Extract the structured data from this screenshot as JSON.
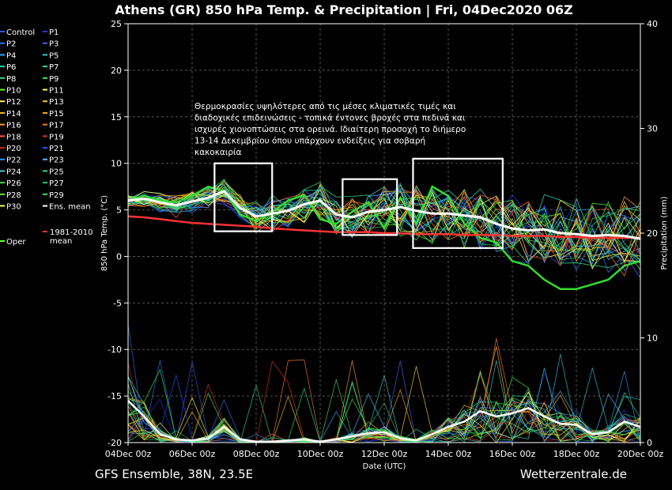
{
  "chart_data": {
    "type": "line",
    "title": "Athens  (GR)  850 hPa Temp. & Precipitation | Fri, 04Dec2020 06Z",
    "ylabel_left": "850 hPa Temp. (°C)",
    "ylabel_right": "Precipitation (mm)",
    "xlabel": "Date (UTC)",
    "footer_left": "GFS Ensemble, 38N, 23.5E",
    "footer_right": "Wetterzentrale.de",
    "ylim_left": [
      -20,
      25
    ],
    "ylim_right": [
      0,
      40
    ],
    "yticks_left": [
      "-20",
      "-15",
      "-10",
      "-5",
      "0",
      "5",
      "10",
      "15",
      "20",
      "25"
    ],
    "yticks_right": [
      "0",
      "10",
      "20",
      "30",
      "40"
    ],
    "x_tick_labels": [
      "04Dec 00z",
      "06Dec 00z",
      "08Dec 00z",
      "10Dec 00z",
      "12Dec 00z",
      "14Dec 00z",
      "16Dec 00z",
      "18Dec 00z",
      "20Dec 00z"
    ],
    "grid": true,
    "legend": [
      {
        "name": "Control",
        "color": "#3355ff"
      },
      {
        "name": "P1",
        "color": "#2233dd"
      },
      {
        "name": "P2",
        "color": "#2277ff"
      },
      {
        "name": "P3",
        "color": "#4466ee"
      },
      {
        "name": "P4",
        "color": "#33aaff"
      },
      {
        "name": "P5",
        "color": "#22ccdd"
      },
      {
        "name": "P6",
        "color": "#22ddbb"
      },
      {
        "name": "P7",
        "color": "#22dd99"
      },
      {
        "name": "P8",
        "color": "#33dd77"
      },
      {
        "name": "P9",
        "color": "#44ee44"
      },
      {
        "name": "P10",
        "color": "#66ff22"
      },
      {
        "name": "P11",
        "color": "#ffff44"
      },
      {
        "name": "P12",
        "color": "#ffee66"
      },
      {
        "name": "P13",
        "color": "#ffcc33"
      },
      {
        "name": "P14",
        "color": "#ffbb22"
      },
      {
        "name": "P15",
        "color": "#ffaa00"
      },
      {
        "name": "P16",
        "color": "#ff9933"
      },
      {
        "name": "P17",
        "color": "#ff7722"
      },
      {
        "name": "P18",
        "color": "#ff5533"
      },
      {
        "name": "P19",
        "color": "#dd3322"
      },
      {
        "name": "P20",
        "color": "#cc2211"
      },
      {
        "name": "P21",
        "color": "#2255ff"
      },
      {
        "name": "P22",
        "color": "#3399ff"
      },
      {
        "name": "P23",
        "color": "#55bbff"
      },
      {
        "name": "P24",
        "color": "#44cccc"
      },
      {
        "name": "P25",
        "color": "#22dd88"
      },
      {
        "name": "P26",
        "color": "#44dd55"
      },
      {
        "name": "P27",
        "color": "#22cc66"
      },
      {
        "name": "P28",
        "color": "#55ee33"
      },
      {
        "name": "P29",
        "color": "#33ee55"
      },
      {
        "name": "P30",
        "color": "#ffff55"
      },
      {
        "name": "Ens. mean",
        "color": "#ffffff"
      },
      {
        "name": "Oper",
        "color": "#66ff33"
      },
      {
        "name": "1981-2010 mean",
        "color": "#ff3333"
      }
    ],
    "annotation": [
      "Θερμοκρασίες υψηλότερες από τις μέσες κλιματικές τιμές και",
      "διαδοχικές επιδεινώσεις - τοπικά έντονες βροχές στα πεδινά και",
      "ισχυρές χιονοπτώσεις στα ορεινά. Ιδιαίτερη προσοχή το διήμερο",
      "13-14 Δεκεμβρίου όπου υπάρχουν ενδείξεις για σοβαρή",
      "κακοκαιρία"
    ],
    "highlight_boxes_days": [
      {
        "x0": 2.7,
        "x1": 4.5,
        "y0": 2.7,
        "y1": 10.0
      },
      {
        "x0": 6.7,
        "x1": 8.4,
        "y0": 2.3,
        "y1": 8.3
      },
      {
        "x0": 8.9,
        "x1": 11.7,
        "y0": 0.9,
        "y1": 10.5
      }
    ],
    "x_days": [
      0,
      0.5,
      1,
      1.5,
      2,
      2.5,
      3,
      3.5,
      4,
      4.5,
      5,
      5.5,
      6,
      6.5,
      7,
      7.5,
      8,
      8.5,
      9,
      9.5,
      10,
      10.5,
      11,
      11.5,
      12,
      12.5,
      13,
      13.5,
      14,
      14.5,
      15,
      15.5,
      16
    ],
    "climatology_temp": [
      4.3,
      4.2,
      4.0,
      3.8,
      3.6,
      3.5,
      3.4,
      3.3,
      3.2,
      3.0,
      2.9,
      2.8,
      2.7,
      2.6,
      2.6,
      2.6,
      2.5,
      2.5,
      2.4,
      2.4,
      2.4,
      2.3,
      2.3,
      2.3,
      2.2,
      2.2,
      2.2,
      2.1,
      2.1,
      2.0,
      2.0,
      2.0,
      2.0
    ],
    "ens_mean_temp": [
      6.0,
      6.2,
      5.8,
      5.5,
      5.9,
      6.3,
      7.0,
      5.2,
      4.3,
      4.6,
      4.9,
      5.6,
      6.0,
      4.5,
      4.2,
      4.8,
      5.0,
      5.3,
      4.9,
      4.6,
      4.6,
      4.4,
      4.2,
      3.5,
      3.0,
      2.8,
      2.9,
      2.5,
      2.4,
      2.2,
      2.3,
      2.2,
      1.9
    ],
    "oper_temp": [
      6.0,
      6.5,
      6.0,
      5.8,
      6.5,
      7.5,
      7.0,
      4.5,
      3.8,
      4.8,
      6.0,
      6.6,
      4.0,
      3.5,
      4.8,
      5.8,
      3.0,
      6.3,
      3.5,
      7.5,
      6.5,
      3.5,
      2.0,
      1.5,
      -0.5,
      -1.0,
      -2.5,
      -3.5,
      -3.5,
      -3.0,
      -2.5,
      -1.0,
      -0.5
    ],
    "ens_mean_precip": [
      4.0,
      2.5,
      0.8,
      0.3,
      0.2,
      0.4,
      1.5,
      0.3,
      0.1,
      0.1,
      0.2,
      0.3,
      0.1,
      0.3,
      0.6,
      0.9,
      1.0,
      0.4,
      0.2,
      0.8,
      1.5,
      2.0,
      3.0,
      2.5,
      2.8,
      3.3,
      2.5,
      1.8,
      1.7,
      0.8,
      1.0,
      2.0,
      1.5
    ]
  }
}
